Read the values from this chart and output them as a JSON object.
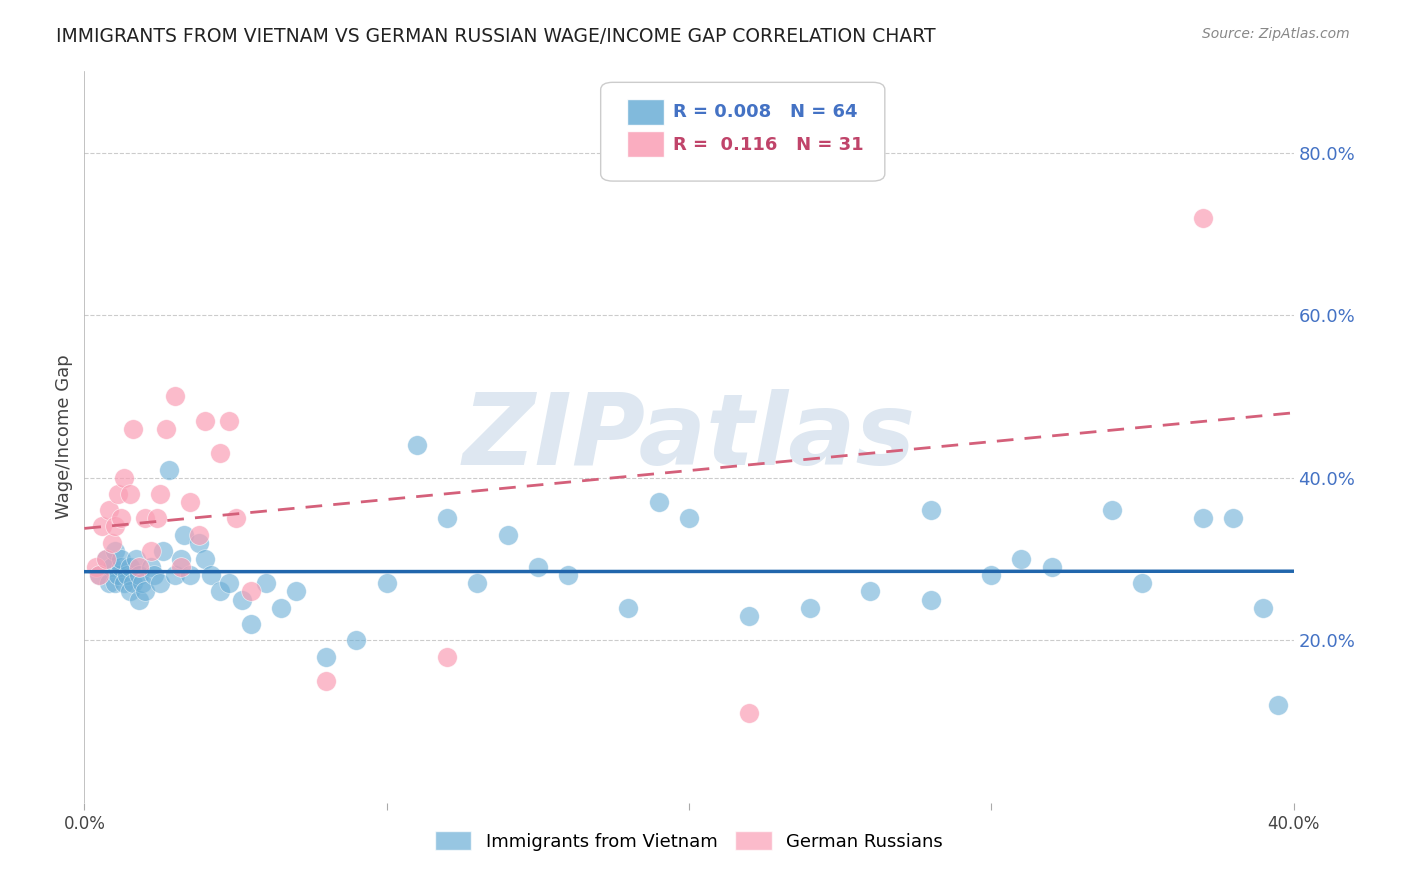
{
  "title": "IMMIGRANTS FROM VIETNAM VS GERMAN RUSSIAN WAGE/INCOME GAP CORRELATION CHART",
  "source": "Source: ZipAtlas.com",
  "xlabel": "",
  "ylabel": "Wage/Income Gap",
  "xlim": [
    0.0,
    0.4
  ],
  "ylim": [
    0.0,
    0.9
  ],
  "yticks": [
    0.2,
    0.4,
    0.6,
    0.8
  ],
  "ytick_labels": [
    "20.0%",
    "40.0%",
    "60.0%",
    "80.0%"
  ],
  "xticks": [
    0.0,
    0.1,
    0.2,
    0.3,
    0.4
  ],
  "xtick_labels": [
    "0.0%",
    "",
    "",
    "",
    "40.0%"
  ],
  "legend_r_blue": "0.008",
  "legend_n_blue": "64",
  "legend_r_pink": "0.116",
  "legend_n_pink": "31",
  "blue_color": "#6baed6",
  "pink_color": "#fa9fb5",
  "blue_line_color": "#2166ac",
  "pink_line_color": "#d4607a",
  "watermark_color": "#c8d8e8",
  "background_color": "#ffffff",
  "blue_scatter_x": [
    0.005,
    0.007,
    0.008,
    0.009,
    0.01,
    0.01,
    0.011,
    0.012,
    0.012,
    0.013,
    0.014,
    0.015,
    0.015,
    0.016,
    0.017,
    0.018,
    0.018,
    0.019,
    0.02,
    0.022,
    0.023,
    0.025,
    0.026,
    0.028,
    0.03,
    0.032,
    0.033,
    0.035,
    0.038,
    0.04,
    0.042,
    0.045,
    0.048,
    0.052,
    0.055,
    0.06,
    0.065,
    0.07,
    0.08,
    0.09,
    0.1,
    0.11,
    0.12,
    0.13,
    0.14,
    0.15,
    0.16,
    0.18,
    0.19,
    0.2,
    0.22,
    0.24,
    0.26,
    0.28,
    0.3,
    0.32,
    0.34,
    0.28,
    0.31,
    0.35,
    0.37,
    0.38,
    0.39,
    0.395
  ],
  "blue_scatter_y": [
    0.28,
    0.3,
    0.27,
    0.29,
    0.27,
    0.31,
    0.28,
    0.29,
    0.3,
    0.27,
    0.28,
    0.26,
    0.29,
    0.27,
    0.3,
    0.25,
    0.28,
    0.27,
    0.26,
    0.29,
    0.28,
    0.27,
    0.31,
    0.41,
    0.28,
    0.3,
    0.33,
    0.28,
    0.32,
    0.3,
    0.28,
    0.26,
    0.27,
    0.25,
    0.22,
    0.27,
    0.24,
    0.26,
    0.18,
    0.2,
    0.27,
    0.44,
    0.35,
    0.27,
    0.33,
    0.29,
    0.28,
    0.24,
    0.37,
    0.35,
    0.23,
    0.24,
    0.26,
    0.25,
    0.28,
    0.29,
    0.36,
    0.36,
    0.3,
    0.27,
    0.35,
    0.35,
    0.24,
    0.12
  ],
  "pink_scatter_x": [
    0.004,
    0.005,
    0.006,
    0.007,
    0.008,
    0.009,
    0.01,
    0.011,
    0.012,
    0.013,
    0.015,
    0.016,
    0.018,
    0.02,
    0.022,
    0.024,
    0.025,
    0.027,
    0.03,
    0.032,
    0.035,
    0.038,
    0.04,
    0.045,
    0.048,
    0.05,
    0.055,
    0.08,
    0.12,
    0.22,
    0.37
  ],
  "pink_scatter_y": [
    0.29,
    0.28,
    0.34,
    0.3,
    0.36,
    0.32,
    0.34,
    0.38,
    0.35,
    0.4,
    0.38,
    0.46,
    0.29,
    0.35,
    0.31,
    0.35,
    0.38,
    0.46,
    0.5,
    0.29,
    0.37,
    0.33,
    0.47,
    0.43,
    0.47,
    0.35,
    0.26,
    0.15,
    0.18,
    0.11,
    0.72
  ]
}
